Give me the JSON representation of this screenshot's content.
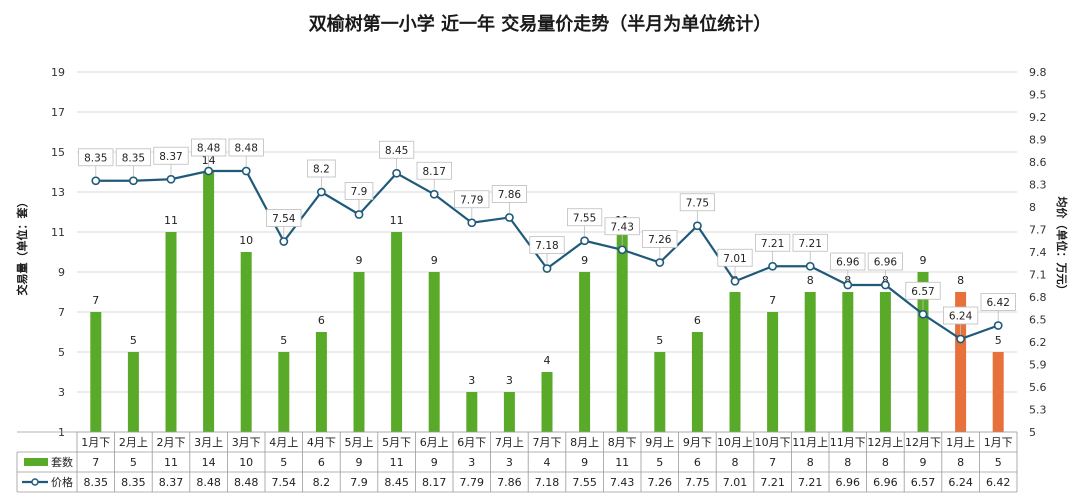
{
  "chart_data": {
    "type": "bar",
    "title": "双榆树第一小学 近一年 交易量价走势（半月为单位统计）",
    "ylabel": "交易量（单位：套）",
    "y2label": "均价（单位：万元）",
    "ylim": [
      1,
      19
    ],
    "y_ticks": [
      "1",
      "3",
      "5",
      "7",
      "9",
      "11",
      "13",
      "15",
      "17",
      "19"
    ],
    "y2lim": [
      5,
      9.8
    ],
    "y2_ticks": [
      "5",
      "5.3",
      "5.6",
      "5.9",
      "6.2",
      "6.5",
      "6.8",
      "7.1",
      "7.4",
      "7.7",
      "8",
      "8.3",
      "8.6",
      "8.9",
      "9.2",
      "9.5",
      "9.8"
    ],
    "categories": [
      "1月下",
      "2月上",
      "2月下",
      "3月上",
      "3月下",
      "4月上",
      "4月下",
      "5月上",
      "5月下",
      "6月上",
      "6月下",
      "7月上",
      "7月下",
      "8月上",
      "8月下",
      "9月上",
      "9月下",
      "10月上",
      "10月下",
      "11月上",
      "11月下",
      "12月上",
      "12月下",
      "1月上",
      "1月下"
    ],
    "series": [
      {
        "name": "套数",
        "kind": "bar",
        "values": [
          7,
          5,
          11,
          14,
          10,
          5,
          6,
          9,
          11,
          9,
          3,
          3,
          4,
          9,
          11,
          5,
          6,
          8,
          7,
          8,
          8,
          8,
          9,
          8,
          5
        ],
        "labels": [
          "7",
          "5",
          "11",
          "14",
          "10",
          "5",
          "6",
          "9",
          "11",
          "9",
          "3",
          "3",
          "4",
          "9",
          "11",
          "5",
          "6",
          "8",
          "7",
          "8",
          "8",
          "8",
          "9",
          "8",
          "5"
        ]
      },
      {
        "name": "价格",
        "kind": "line",
        "axis": "right",
        "values": [
          8.35,
          8.35,
          8.37,
          8.48,
          8.48,
          7.54,
          8.2,
          7.9,
          8.45,
          8.17,
          7.79,
          7.86,
          7.18,
          7.55,
          7.43,
          7.26,
          7.75,
          7.01,
          7.21,
          7.21,
          6.96,
          6.96,
          6.57,
          6.24,
          6.42
        ],
        "labels": [
          "8.35",
          "8.35",
          "8.37",
          "8.48",
          "8.48",
          "7.54",
          "8.2",
          "7.9",
          "8.45",
          "8.17",
          "7.79",
          "7.86",
          "7.18",
          "7.55",
          "7.43",
          "7.26",
          "7.75",
          "7.01",
          "7.21",
          "7.21",
          "6.96",
          "6.96",
          "6.57",
          "6.24",
          "6.42"
        ]
      }
    ],
    "highlight_indices": [
      23,
      24
    ]
  },
  "colors": {
    "bar": "#5aaa2a",
    "bar_highlight": "#e8703a",
    "line": "#1f5a7a",
    "grid": "#d9d9d9"
  }
}
